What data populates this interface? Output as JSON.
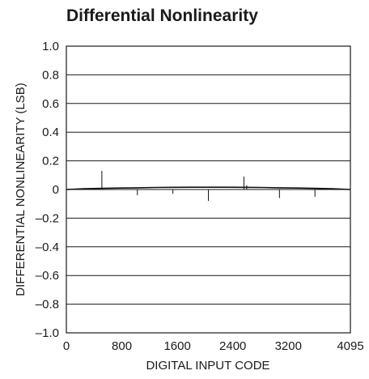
{
  "chart_data": {
    "type": "line",
    "title": "Differential Nonlinearity",
    "xlabel": "DIGITAL INPUT CODE",
    "ylabel": "DIFFERENTIAL NONLINEARITY (LSB)",
    "xlim": [
      0,
      4095
    ],
    "ylim": [
      -1.0,
      1.0
    ],
    "x_ticks": [
      0,
      800,
      1600,
      2400,
      3200,
      4095
    ],
    "x_tick_labels": [
      "0",
      "800",
      "1600",
      "2400",
      "3200",
      "4095"
    ],
    "y_ticks": [
      1.0,
      0.8,
      0.6,
      0.4,
      0.2,
      0,
      -0.2,
      -0.4,
      -0.6,
      -0.8,
      -1.0
    ],
    "y_tick_labels": [
      "1.0",
      "0.8",
      "0.6",
      "0.4",
      "0.2",
      "0",
      "–0.2",
      "–0.4",
      "–0.6",
      "–0.8",
      "–1.0"
    ],
    "grid": true,
    "series": [
      {
        "x": [
          0,
          256,
          512,
          768,
          1024,
          1280,
          1536,
          1792,
          2048,
          2304,
          2560,
          2816,
          3072,
          3328,
          3584,
          3840,
          4095
        ],
        "y": [
          0.0,
          0.005,
          0.008,
          0.01,
          0.012,
          0.014,
          0.015,
          0.016,
          0.016,
          0.016,
          0.015,
          0.014,
          0.012,
          0.01,
          0.008,
          0.005,
          0.0
        ]
      }
    ],
    "spikes": [
      {
        "x": 512,
        "y": 0.13
      },
      {
        "x": 1024,
        "y": -0.04
      },
      {
        "x": 1536,
        "y": -0.03
      },
      {
        "x": 2048,
        "y": -0.08
      },
      {
        "x": 2560,
        "y": 0.09
      },
      {
        "x": 2600,
        "y": 0.03
      },
      {
        "x": 3072,
        "y": -0.06
      },
      {
        "x": 3584,
        "y": -0.05
      }
    ]
  }
}
